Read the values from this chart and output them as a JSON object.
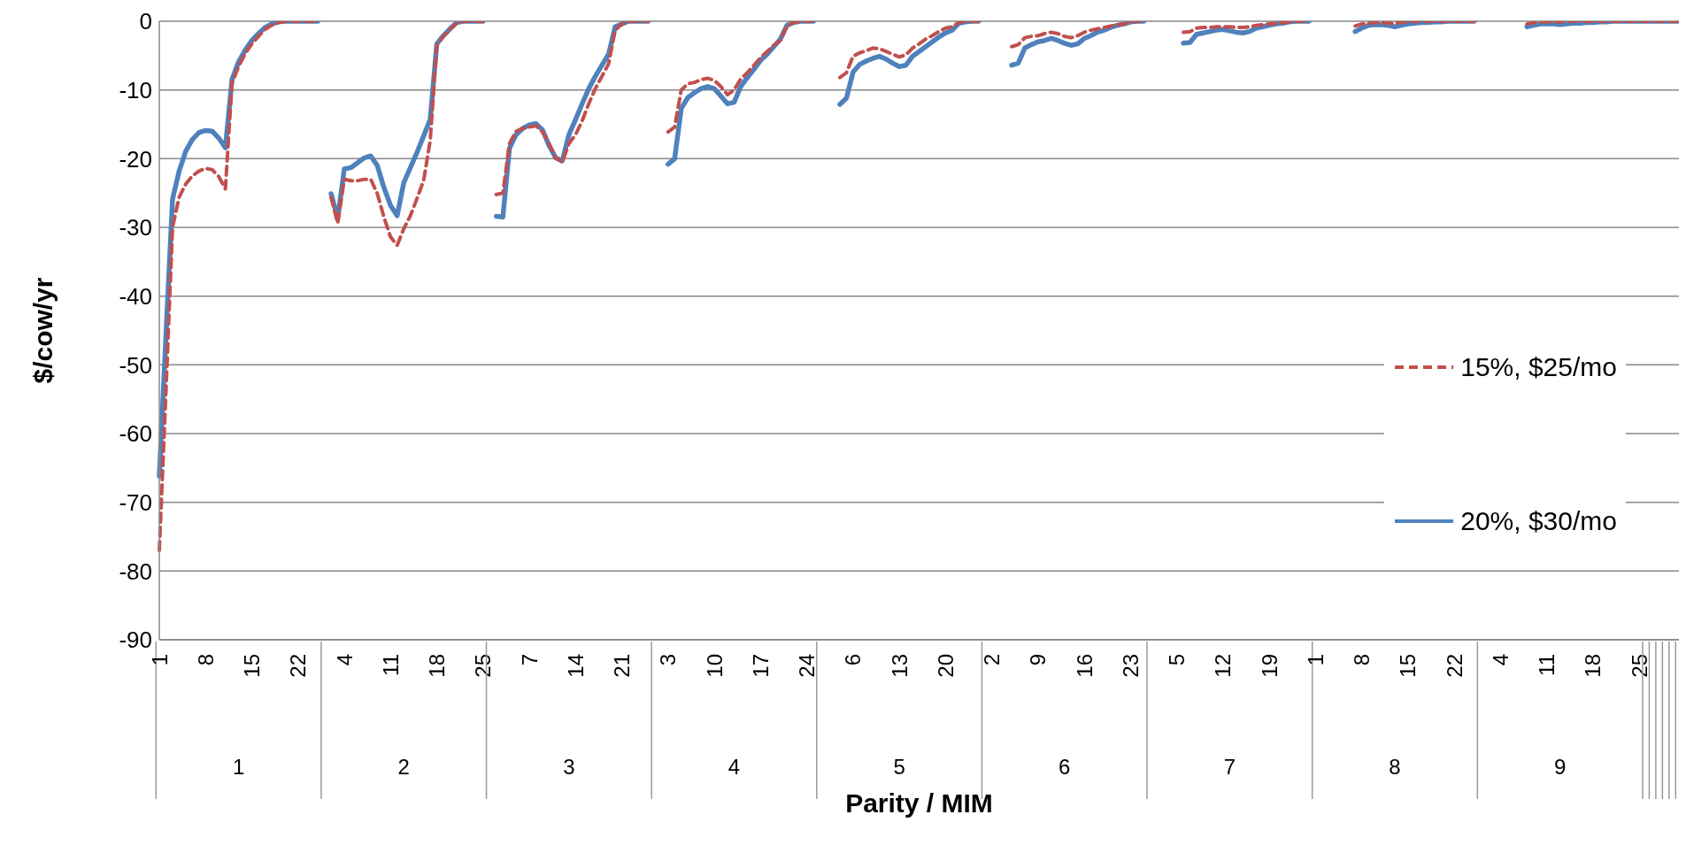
{
  "chart_data": {
    "type": "line",
    "xlabel": "Parity / MIM",
    "ylabel": "$/cow/yr",
    "ylim": [
      -90,
      0
    ],
    "yticks": [
      -90,
      -80,
      -70,
      -60,
      -50,
      -40,
      -30,
      -20,
      -10,
      0
    ],
    "grid": "y",
    "legend": "right",
    "marker": "none",
    "annotations": [
      "1",
      "2",
      "3",
      "4",
      "5",
      "6",
      "7",
      "8",
      "9"
    ],
    "categories": [
      "1",
      null,
      null,
      null,
      null,
      null,
      null,
      "8",
      null,
      null,
      null,
      null,
      null,
      null,
      "15",
      null,
      null,
      null,
      null,
      null,
      null,
      "22",
      null,
      null,
      null,
      null,
      null,
      null,
      "4",
      null,
      null,
      null,
      null,
      null,
      null,
      "11",
      null,
      null,
      null,
      null,
      null,
      null,
      "18",
      null,
      null,
      null,
      null,
      null,
      null,
      "25",
      null,
      null,
      null,
      null,
      null,
      null,
      "7",
      null,
      null,
      null,
      null,
      null,
      null,
      "14",
      null,
      null,
      null,
      null,
      null,
      null,
      "21",
      null,
      null,
      null,
      null,
      null,
      null,
      "3",
      null,
      null,
      null,
      null,
      null,
      null,
      "10",
      null,
      null,
      null,
      null,
      null,
      null,
      "17",
      null,
      null,
      null,
      null,
      null,
      null,
      "24",
      null,
      null,
      null,
      null,
      null,
      null,
      "6",
      null,
      null,
      null,
      null,
      null,
      null,
      "13",
      null,
      null,
      null,
      null,
      null,
      null,
      "20",
      null,
      null,
      null,
      null,
      null,
      null,
      "2",
      null,
      null,
      null,
      null,
      null,
      null,
      "9",
      null,
      null,
      null,
      null,
      null,
      null,
      "16",
      null,
      null,
      null,
      null,
      null,
      null,
      "23",
      null,
      null,
      null,
      null,
      null,
      null,
      "5",
      null,
      null,
      null,
      null,
      null,
      null,
      "12",
      null,
      null,
      null,
      null,
      null,
      null,
      "19",
      null,
      null,
      null,
      null,
      null,
      null,
      "1",
      null,
      null,
      null,
      null,
      null,
      null,
      "8",
      null,
      null,
      null,
      null,
      null,
      null,
      "15",
      null,
      null,
      null,
      null,
      null,
      null,
      "22",
      null,
      null,
      null,
      null,
      null,
      null,
      "4",
      null,
      null,
      null,
      null,
      null,
      null,
      "11",
      null,
      null,
      null,
      null,
      null,
      null,
      "18",
      null,
      null,
      null,
      null,
      null,
      null,
      "25",
      null,
      null,
      null,
      null,
      null,
      null
    ],
    "series": [
      {
        "name": "15%, $25/mo",
        "color": "#c0504d",
        "line_style": "dashed",
        "values": [
          -77,
          -54,
          -30,
          -25.6,
          -23.7,
          -22.5,
          -21.8,
          -21.4,
          -21.6,
          -22.6,
          -24.4,
          -9,
          -6.6,
          -4.7,
          -3.3,
          -2.2,
          -1.2,
          -0.6,
          -0.2,
          0,
          0,
          0,
          0,
          0,
          0,
          null,
          -25.6,
          -29.4,
          -23,
          -23.2,
          -23.2,
          -23,
          -23,
          -25.1,
          -28.5,
          -31.4,
          -32.6,
          -30.2,
          -28.3,
          -25.8,
          -23.2,
          -17.4,
          -3.5,
          -2.2,
          -1.2,
          -0.3,
          0,
          0,
          0,
          0,
          null,
          -25.2,
          -25,
          -17.8,
          -16,
          -15.6,
          -15.4,
          -15.2,
          -16.1,
          -17.8,
          -19.9,
          -20.5,
          -17.8,
          -16.5,
          -14.5,
          -12,
          -9.8,
          -8,
          -6.2,
          -1.3,
          -0.4,
          0,
          0,
          0,
          0,
          null,
          null,
          -16.1,
          -15.4,
          -10,
          -9.1,
          -8.9,
          -8.5,
          -8.3,
          -8.6,
          -9.5,
          -10.7,
          -10,
          -8.4,
          -7.5,
          -6.4,
          -5.3,
          -4.4,
          -3.5,
          -2.8,
          -0.6,
          -0.2,
          0,
          0,
          0,
          null,
          null,
          null,
          -8.2,
          -7.5,
          -5.1,
          -4.6,
          -4.3,
          -3.9,
          -4,
          -4.4,
          -4.8,
          -5.2,
          -4.9,
          -3.9,
          -3.3,
          -2.6,
          -2.1,
          -1.5,
          -1,
          -0.8,
          -0.2,
          0,
          0,
          0,
          null,
          null,
          null,
          null,
          -3.7,
          -3.4,
          -2.4,
          -2.2,
          -2.1,
          -1.8,
          -1.6,
          -1.8,
          -2.2,
          -2.4,
          -2.1,
          -1.6,
          -1.3,
          -1.1,
          -0.9,
          -0.7,
          -0.5,
          -0.4,
          -0.1,
          0,
          0,
          null,
          null,
          null,
          null,
          null,
          -1.6,
          -1.5,
          -1,
          -0.9,
          -0.9,
          -0.8,
          -0.8,
          -0.8,
          -0.9,
          -0.9,
          -0.8,
          -0.6,
          -0.5,
          -0.4,
          -0.3,
          -0.2,
          -0.1,
          0,
          0,
          0,
          null,
          null,
          null,
          null,
          null,
          null,
          -0.7,
          -0.4,
          -0.3,
          -0.2,
          -0.2,
          -0.3,
          -0.3,
          -0.1,
          -0.1,
          0,
          0,
          0,
          0,
          0,
          0,
          0,
          0,
          0,
          0,
          null,
          null,
          null,
          null,
          null,
          null,
          null,
          -0.4,
          -0.2,
          -0.1,
          -0.1,
          -0.1,
          -0.1,
          0,
          0,
          0,
          0,
          0,
          0,
          0,
          0,
          0,
          0,
          0,
          0,
          0,
          0,
          0,
          0,
          0,
          0
        ]
      },
      {
        "name": "20%, $30/mo",
        "color": "#4f81bd",
        "line_style": "solid",
        "values": [
          -66.2,
          -45.8,
          -25.9,
          -21.8,
          -18.9,
          -17.2,
          -16.2,
          -15.9,
          -16,
          -17,
          -18.4,
          -8.5,
          -5.9,
          -4.2,
          -2.8,
          -1.8,
          -0.9,
          -0.4,
          -0.1,
          0,
          0,
          0,
          0,
          0,
          0,
          null,
          -25.1,
          -28.7,
          -21.5,
          -21.3,
          -20.6,
          -19.9,
          -19.6,
          -21,
          -24.2,
          -26.8,
          -28.3,
          -23.5,
          -21.3,
          -19.1,
          -16.7,
          -14.3,
          -3.3,
          -2.1,
          -1.1,
          -0.2,
          0,
          0,
          0,
          0,
          null,
          -28.4,
          -28.5,
          -18.5,
          -16.5,
          -15.6,
          -15.1,
          -14.9,
          -15.8,
          -18.1,
          -19.9,
          -20.3,
          -16.5,
          -14.3,
          -12,
          -9.8,
          -8,
          -6.4,
          -4.8,
          -0.8,
          -0.4,
          0,
          0,
          0,
          0,
          null,
          null,
          -20.8,
          -20,
          -12.7,
          -11.1,
          -10.4,
          -9.8,
          -9.5,
          -9.8,
          -10.9,
          -12,
          -11.8,
          -9.5,
          -8.2,
          -7,
          -5.7,
          -4.8,
          -3.7,
          -2.6,
          -0.6,
          -0.2,
          0,
          0,
          0,
          null,
          null,
          null,
          -12.1,
          -11.2,
          -7.4,
          -6.3,
          -5.8,
          -5.4,
          -5.1,
          -5.5,
          -6.1,
          -6.6,
          -6.4,
          -5.1,
          -4.4,
          -3.7,
          -3,
          -2.3,
          -1.7,
          -1.3,
          -0.3,
          -0.1,
          0,
          0,
          null,
          null,
          null,
          null,
          -6.4,
          -6.1,
          -3.9,
          -3.4,
          -3,
          -2.8,
          -2.5,
          -2.8,
          -3.2,
          -3.5,
          -3.3,
          -2.5,
          -2.1,
          -1.6,
          -1.3,
          -0.9,
          -0.6,
          -0.4,
          -0.1,
          0,
          0,
          null,
          null,
          null,
          null,
          null,
          -3.2,
          -3.1,
          -1.9,
          -1.7,
          -1.5,
          -1.3,
          -1.2,
          -1.4,
          -1.6,
          -1.7,
          -1.5,
          -1,
          -0.8,
          -0.6,
          -0.4,
          -0.3,
          -0.1,
          0,
          0,
          0,
          null,
          null,
          null,
          null,
          null,
          null,
          -1.5,
          -1,
          -0.6,
          -0.5,
          -0.5,
          -0.6,
          -0.8,
          -0.6,
          -0.4,
          -0.3,
          -0.2,
          -0.2,
          -0.1,
          -0.1,
          0,
          0,
          0,
          0,
          0,
          null,
          null,
          null,
          null,
          null,
          null,
          null,
          -0.8,
          -0.6,
          -0.4,
          -0.4,
          -0.4,
          -0.5,
          -0.4,
          -0.3,
          -0.3,
          -0.2,
          -0.2,
          -0.1,
          -0.1,
          0,
          0,
          0,
          0,
          0,
          0,
          0,
          0,
          0,
          0,
          0
        ]
      }
    ]
  }
}
